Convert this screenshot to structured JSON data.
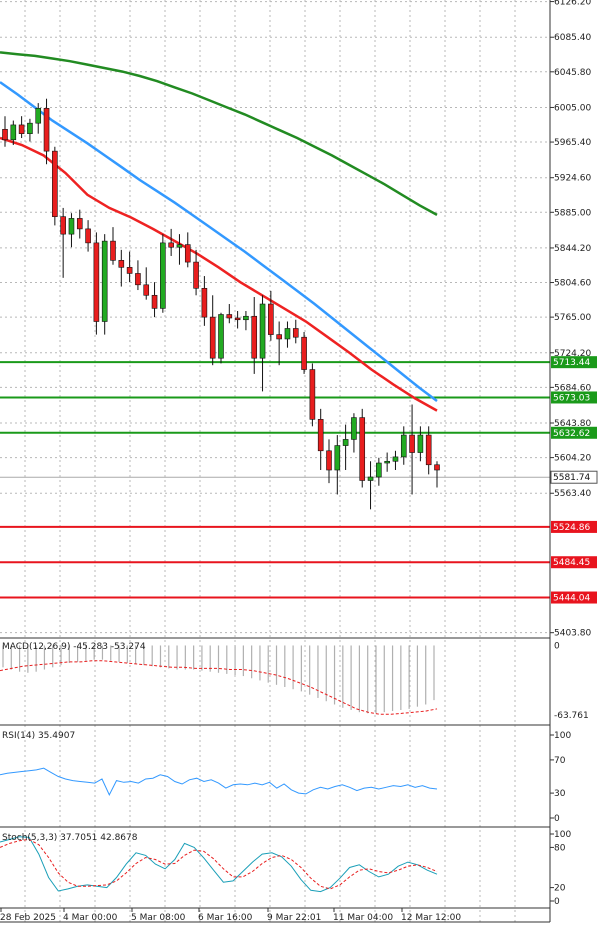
{
  "chart_data": [
    {
      "type": "candlestick",
      "panel": "price",
      "y_ticks": [
        "6126.20",
        "6085.40",
        "6045.80",
        "6005.00",
        "5965.40",
        "5924.60",
        "5885.00",
        "5844.20",
        "5804.60",
        "5765.00",
        "5724.20",
        "5684.60",
        "5643.80",
        "5604.20",
        "5563.40",
        "5403.80"
      ],
      "ylim": [
        5400,
        6128
      ],
      "current_price": "5581.74",
      "levels": [
        {
          "value": "5713.44",
          "kind": "resistance",
          "color": "#1a9a1a"
        },
        {
          "value": "5673.03",
          "kind": "resistance",
          "color": "#1a9a1a"
        },
        {
          "value": "5632.62",
          "kind": "resistance",
          "color": "#1a9a1a"
        },
        {
          "value": "5524.86",
          "kind": "support",
          "color": "#e8141e"
        },
        {
          "value": "5484.45",
          "kind": "support",
          "color": "#e8141e"
        },
        {
          "value": "5444.04",
          "kind": "support",
          "color": "#e8141e"
        }
      ],
      "candles": [
        {
          "o": 5980,
          "h": 5995,
          "l": 5960,
          "c": 5968
        },
        {
          "o": 5968,
          "h": 5990,
          "l": 5962,
          "c": 5985
        },
        {
          "o": 5985,
          "h": 5995,
          "l": 5970,
          "c": 5975
        },
        {
          "o": 5975,
          "h": 5992,
          "l": 5966,
          "c": 5987
        },
        {
          "o": 5987,
          "h": 6010,
          "l": 5975,
          "c": 6004
        },
        {
          "o": 6004,
          "h": 6015,
          "l": 5940,
          "c": 5955
        },
        {
          "o": 5955,
          "h": 5960,
          "l": 5870,
          "c": 5880
        },
        {
          "o": 5880,
          "h": 5890,
          "l": 5810,
          "c": 5860
        },
        {
          "o": 5860,
          "h": 5884,
          "l": 5845,
          "c": 5878
        },
        {
          "o": 5878,
          "h": 5888,
          "l": 5855,
          "c": 5866
        },
        {
          "o": 5866,
          "h": 5876,
          "l": 5840,
          "c": 5850
        },
        {
          "o": 5850,
          "h": 5862,
          "l": 5745,
          "c": 5760
        },
        {
          "o": 5760,
          "h": 5860,
          "l": 5745,
          "c": 5852
        },
        {
          "o": 5852,
          "h": 5868,
          "l": 5825,
          "c": 5830
        },
        {
          "o": 5830,
          "h": 5842,
          "l": 5800,
          "c": 5822
        },
        {
          "o": 5822,
          "h": 5840,
          "l": 5805,
          "c": 5815
        },
        {
          "o": 5815,
          "h": 5830,
          "l": 5796,
          "c": 5802
        },
        {
          "o": 5802,
          "h": 5822,
          "l": 5785,
          "c": 5790
        },
        {
          "o": 5790,
          "h": 5805,
          "l": 5765,
          "c": 5775
        },
        {
          "o": 5775,
          "h": 5860,
          "l": 5770,
          "c": 5850
        },
        {
          "o": 5850,
          "h": 5866,
          "l": 5835,
          "c": 5845
        },
        {
          "o": 5845,
          "h": 5860,
          "l": 5825,
          "c": 5848
        },
        {
          "o": 5848,
          "h": 5862,
          "l": 5822,
          "c": 5828
        },
        {
          "o": 5828,
          "h": 5842,
          "l": 5790,
          "c": 5798
        },
        {
          "o": 5798,
          "h": 5812,
          "l": 5755,
          "c": 5765
        },
        {
          "o": 5765,
          "h": 5790,
          "l": 5710,
          "c": 5718
        },
        {
          "o": 5718,
          "h": 5770,
          "l": 5712,
          "c": 5768
        },
        {
          "o": 5768,
          "h": 5780,
          "l": 5758,
          "c": 5764
        },
        {
          "o": 5764,
          "h": 5772,
          "l": 5752,
          "c": 5762
        },
        {
          "o": 5762,
          "h": 5772,
          "l": 5750,
          "c": 5766
        },
        {
          "o": 5766,
          "h": 5788,
          "l": 5700,
          "c": 5718
        },
        {
          "o": 5718,
          "h": 5790,
          "l": 5680,
          "c": 5780
        },
        {
          "o": 5780,
          "h": 5795,
          "l": 5738,
          "c": 5745
        },
        {
          "o": 5745,
          "h": 5760,
          "l": 5710,
          "c": 5740
        },
        {
          "o": 5740,
          "h": 5760,
          "l": 5730,
          "c": 5752
        },
        {
          "o": 5752,
          "h": 5762,
          "l": 5735,
          "c": 5742
        },
        {
          "o": 5742,
          "h": 5748,
          "l": 5700,
          "c": 5705
        },
        {
          "o": 5705,
          "h": 5712,
          "l": 5640,
          "c": 5648
        },
        {
          "o": 5648,
          "h": 5660,
          "l": 5590,
          "c": 5612
        },
        {
          "o": 5612,
          "h": 5625,
          "l": 5575,
          "c": 5590
        },
        {
          "o": 5590,
          "h": 5630,
          "l": 5562,
          "c": 5618
        },
        {
          "o": 5618,
          "h": 5642,
          "l": 5590,
          "c": 5625
        },
        {
          "o": 5625,
          "h": 5655,
          "l": 5610,
          "c": 5650
        },
        {
          "o": 5650,
          "h": 5660,
          "l": 5570,
          "c": 5578
        },
        {
          "o": 5578,
          "h": 5600,
          "l": 5545,
          "c": 5582
        },
        {
          "o": 5582,
          "h": 5604,
          "l": 5572,
          "c": 5598
        },
        {
          "o": 5598,
          "h": 5610,
          "l": 5588,
          "c": 5600
        },
        {
          "o": 5600,
          "h": 5612,
          "l": 5590,
          "c": 5605
        },
        {
          "o": 5605,
          "h": 5640,
          "l": 5596,
          "c": 5630
        },
        {
          "o": 5630,
          "h": 5665,
          "l": 5562,
          "c": 5610
        },
        {
          "o": 5610,
          "h": 5640,
          "l": 5600,
          "c": 5630
        },
        {
          "o": 5630,
          "h": 5640,
          "l": 5585,
          "c": 5596
        },
        {
          "o": 5596,
          "h": 5600,
          "l": 5570,
          "c": 5590
        }
      ],
      "moving_averages": [
        {
          "color": "#228b22",
          "values": [
            6068,
            6066,
            6064,
            6061,
            6058,
            6054,
            6050,
            6046,
            6041,
            6035,
            6028,
            6021,
            6013,
            6005,
            5997,
            5988,
            5979,
            5970,
            5960,
            5950,
            5939,
            5928,
            5917,
            5905,
            5893,
            5882
          ]
        },
        {
          "color": "#3399ff",
          "values": [
            6034,
            6020,
            6005,
            5990,
            5977,
            5964,
            5950,
            5936,
            5922,
            5909,
            5896,
            5882,
            5868,
            5854,
            5840,
            5825,
            5810,
            5795,
            5780,
            5764,
            5748,
            5732,
            5716,
            5700,
            5684,
            5669
          ]
        },
        {
          "color": "#ee2222",
          "values": [
            5970,
            5962,
            5950,
            5930,
            5905,
            5890,
            5879,
            5866,
            5852,
            5838,
            5822,
            5805,
            5790,
            5775,
            5760,
            5742,
            5724,
            5705,
            5688,
            5672,
            5658
          ]
        }
      ]
    },
    {
      "type": "histogram",
      "panel": "macd",
      "label": "MACD(12,26,9) -45.283 -53.274",
      "y_ticks": [
        "0",
        "-63.761"
      ],
      "histogram": [
        -20,
        -22,
        -24,
        -25,
        -24,
        -22,
        -20,
        -18,
        -16,
        -15,
        -14,
        -13,
        -13,
        -14,
        -15,
        -16,
        -17,
        -18,
        -19,
        -20,
        -21,
        -22,
        -22,
        -22,
        -23,
        -24,
        -25,
        -26,
        -27,
        -28,
        -30,
        -32,
        -34,
        -36,
        -38,
        -40,
        -42,
        -45,
        -48,
        -51,
        -54,
        -57,
        -59,
        -61,
        -62,
        -62,
        -61,
        -60,
        -59,
        -58,
        -56,
        -54,
        -50
      ],
      "signal": [
        -23,
        -21,
        -19,
        -18,
        -17,
        -16,
        -15,
        -15,
        -14,
        -14,
        -15,
        -16,
        -17,
        -18,
        -19,
        -20,
        -20,
        -21,
        -21,
        -21,
        -22,
        -22,
        -23,
        -25,
        -27,
        -30,
        -34,
        -38,
        -43,
        -48,
        -53,
        -58,
        -61,
        -63,
        -63,
        -62,
        -61,
        -60,
        -58
      ]
    },
    {
      "type": "line",
      "panel": "rsi",
      "label": "RSI(14) 35.4907",
      "y_ticks": [
        "100",
        "70",
        "30",
        "0"
      ],
      "ylim": [
        0,
        100
      ],
      "values": [
        52,
        54,
        55,
        56,
        57,
        58,
        60,
        55,
        50,
        47,
        45,
        44,
        43,
        42,
        47,
        28,
        45,
        43,
        44,
        42,
        47,
        48,
        52,
        50,
        44,
        41,
        46,
        48,
        44,
        46,
        42,
        36,
        40,
        41,
        40,
        42,
        40,
        43,
        36,
        41,
        34,
        30,
        29,
        34,
        37,
        35,
        38,
        40,
        37,
        33,
        36,
        37,
        35,
        37,
        39,
        38,
        40,
        37,
        39,
        36,
        35
      ]
    },
    {
      "type": "line",
      "panel": "stoch",
      "label": "Stoch(5,3,3) 37.7051 42.8678",
      "y_ticks": [
        "100",
        "80",
        "20",
        "0"
      ],
      "ylim": [
        0,
        100
      ],
      "k": [
        88,
        92,
        96,
        95,
        70,
        35,
        15,
        18,
        22,
        24,
        22,
        20,
        35,
        55,
        72,
        68,
        55,
        48,
        62,
        86,
        80,
        64,
        46,
        28,
        30,
        44,
        58,
        70,
        72,
        66,
        52,
        32,
        16,
        14,
        20,
        34,
        50,
        54,
        44,
        36,
        40,
        52,
        58,
        54,
        46,
        40
      ],
      "d": [
        80,
        86,
        90,
        92,
        84,
        65,
        42,
        28,
        22,
        22,
        23,
        24,
        30,
        42,
        56,
        65,
        62,
        55,
        56,
        68,
        76,
        74,
        63,
        48,
        36,
        36,
        44,
        56,
        65,
        68,
        62,
        50,
        34,
        22,
        18,
        24,
        36,
        46,
        48,
        44,
        42,
        46,
        52,
        54,
        50,
        44
      ]
    }
  ],
  "time_axis": [
    "28 Feb 2025",
    "4 Mar 00:00",
    "5 Mar 08:00",
    "6 Mar 16:00",
    "9 Mar 22:01",
    "11 Mar 04:00",
    "12 Mar 12:00"
  ]
}
